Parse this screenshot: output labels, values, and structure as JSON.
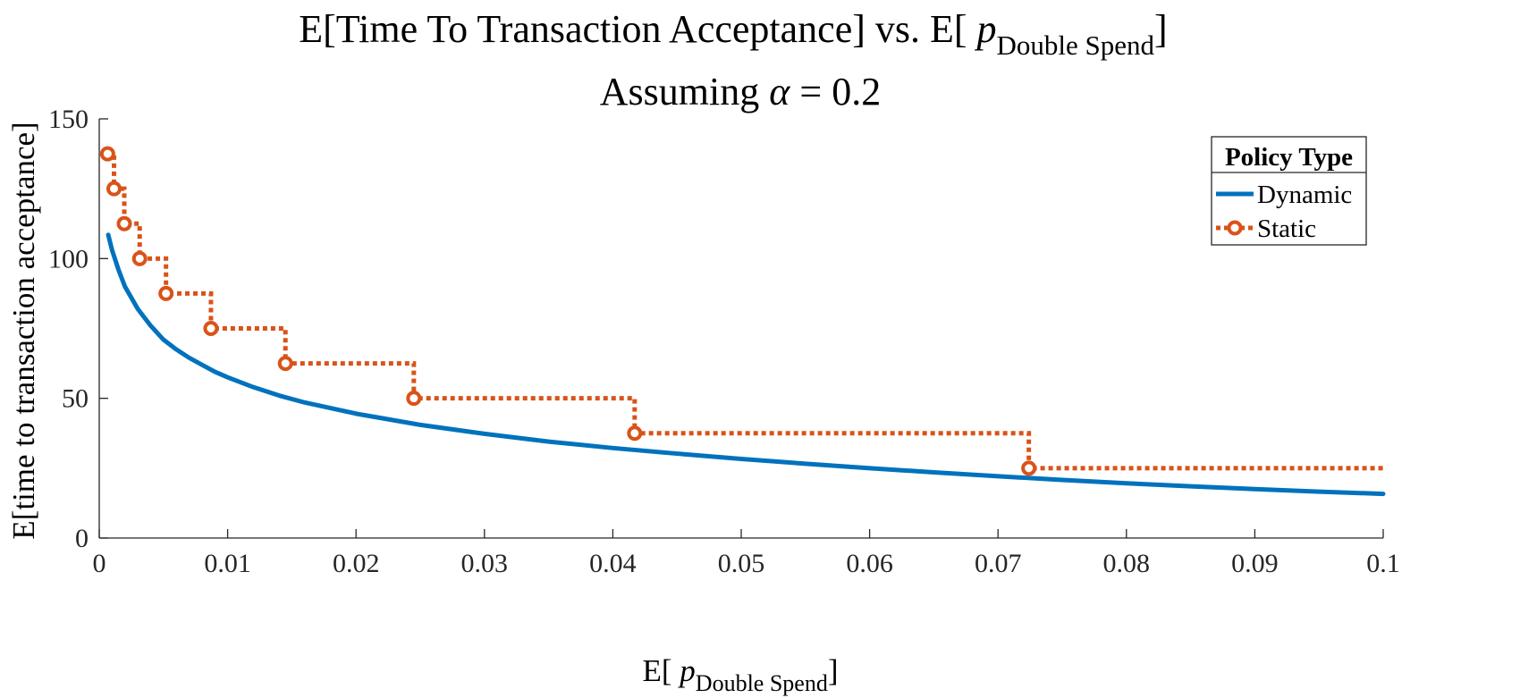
{
  "chart_data": {
    "type": "line",
    "title_main": "E[Time To Transaction Acceptance] vs. E[ ",
    "title_p": "p",
    "title_sub": "Double Spend",
    "title_close": "]",
    "subtitle_prefix": "Assuming ",
    "subtitle_alpha": "α",
    "subtitle_suffix": " = 0.2",
    "xlabel_prefix": "E[ ",
    "xlabel_p": "p",
    "xlabel_sub": "Double Spend",
    "xlabel_close": "]",
    "ylabel": "E[time to transaction acceptance]",
    "xlim": [
      0,
      0.1
    ],
    "ylim": [
      0,
      150
    ],
    "xticks": [
      0,
      0.01,
      0.02,
      0.03,
      0.04,
      0.05,
      0.06,
      0.07,
      0.08,
      0.09,
      0.1
    ],
    "xtick_labels": [
      "0",
      "0.01",
      "0.02",
      "0.03",
      "0.04",
      "0.05",
      "0.06",
      "0.07",
      "0.08",
      "0.09",
      "0.1"
    ],
    "yticks": [
      0,
      50,
      100,
      150
    ],
    "ytick_labels": [
      "0",
      "50",
      "100",
      "150"
    ],
    "grid": false,
    "legend": {
      "title": "Policy Type",
      "position": "top-right"
    },
    "colors": {
      "dynamic": "#0072BD",
      "static": "#D95319",
      "axis": "#262626"
    },
    "series": [
      {
        "name": "Dynamic",
        "style": "solid",
        "x": [
          0.0007,
          0.001,
          0.0015,
          0.002,
          0.0025,
          0.003,
          0.004,
          0.005,
          0.006,
          0.007,
          0.008,
          0.009,
          0.01,
          0.012,
          0.014,
          0.016,
          0.018,
          0.02,
          0.025,
          0.03,
          0.035,
          0.04,
          0.045,
          0.05,
          0.055,
          0.06,
          0.065,
          0.07,
          0.075,
          0.08,
          0.085,
          0.09,
          0.095,
          0.1
        ],
        "y": [
          108.5,
          103,
          96,
          90,
          86,
          82,
          76,
          71,
          67.5,
          64.5,
          62,
          59.5,
          57.5,
          54,
          51,
          48.5,
          46.5,
          44.5,
          40.5,
          37.3,
          34.5,
          32.2,
          30.2,
          28.3,
          26.6,
          25,
          23.5,
          22.1,
          20.8,
          19.6,
          18.5,
          17.5,
          16.6,
          15.8
        ]
      },
      {
        "name": "Static",
        "style": "dotted-step",
        "x": [
          0.00065,
          0.00115,
          0.00195,
          0.00315,
          0.0052,
          0.0087,
          0.0145,
          0.0245,
          0.0417,
          0.0724,
          0.1
        ],
        "y": [
          137.5,
          125,
          112.5,
          100,
          87.5,
          75,
          62.5,
          50,
          37.5,
          25,
          25
        ],
        "markers": [
          0.00065,
          0.00115,
          0.00195,
          0.00315,
          0.0052,
          0.0087,
          0.0145,
          0.0245,
          0.0417,
          0.0724
        ]
      }
    ]
  }
}
